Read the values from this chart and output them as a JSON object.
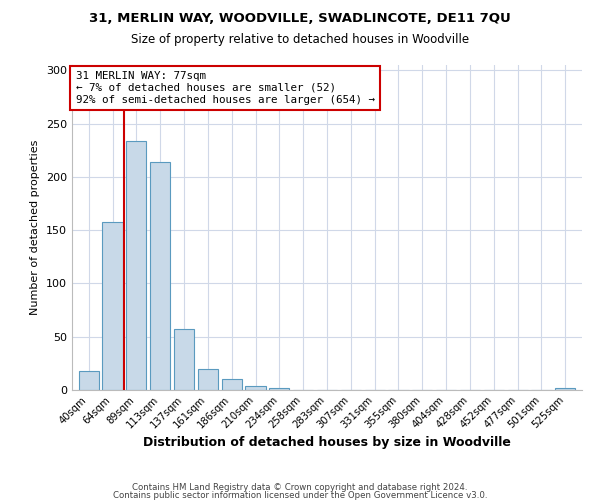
{
  "title_line1": "31, MERLIN WAY, WOODVILLE, SWADLINCOTE, DE11 7QU",
  "title_line2": "Size of property relative to detached houses in Woodville",
  "xlabel": "Distribution of detached houses by size in Woodville",
  "ylabel": "Number of detached properties",
  "bar_labels": [
    "40sqm",
    "64sqm",
    "89sqm",
    "113sqm",
    "137sqm",
    "161sqm",
    "186sqm",
    "210sqm",
    "234sqm",
    "258sqm",
    "283sqm",
    "307sqm",
    "331sqm",
    "355sqm",
    "380sqm",
    "404sqm",
    "428sqm",
    "452sqm",
    "477sqm",
    "501sqm",
    "525sqm"
  ],
  "bar_values": [
    18,
    158,
    234,
    214,
    57,
    20,
    10,
    4,
    2,
    0,
    0,
    0,
    0,
    0,
    0,
    0,
    0,
    0,
    0,
    0,
    2
  ],
  "bar_color": "#c8d9e8",
  "bar_edge_color": "#5a9abf",
  "vline_x": 1.5,
  "vline_color": "#cc0000",
  "annotation_text": "31 MERLIN WAY: 77sqm\n← 7% of detached houses are smaller (52)\n92% of semi-detached houses are larger (654) →",
  "annotation_box_color": "#ffffff",
  "annotation_box_edge": "#cc0000",
  "ylim": [
    0,
    305
  ],
  "yticks": [
    0,
    50,
    100,
    150,
    200,
    250,
    300
  ],
  "footer_line1": "Contains HM Land Registry data © Crown copyright and database right 2024.",
  "footer_line2": "Contains public sector information licensed under the Open Government Licence v3.0.",
  "bg_color": "#ffffff",
  "grid_color": "#d0d8e8"
}
